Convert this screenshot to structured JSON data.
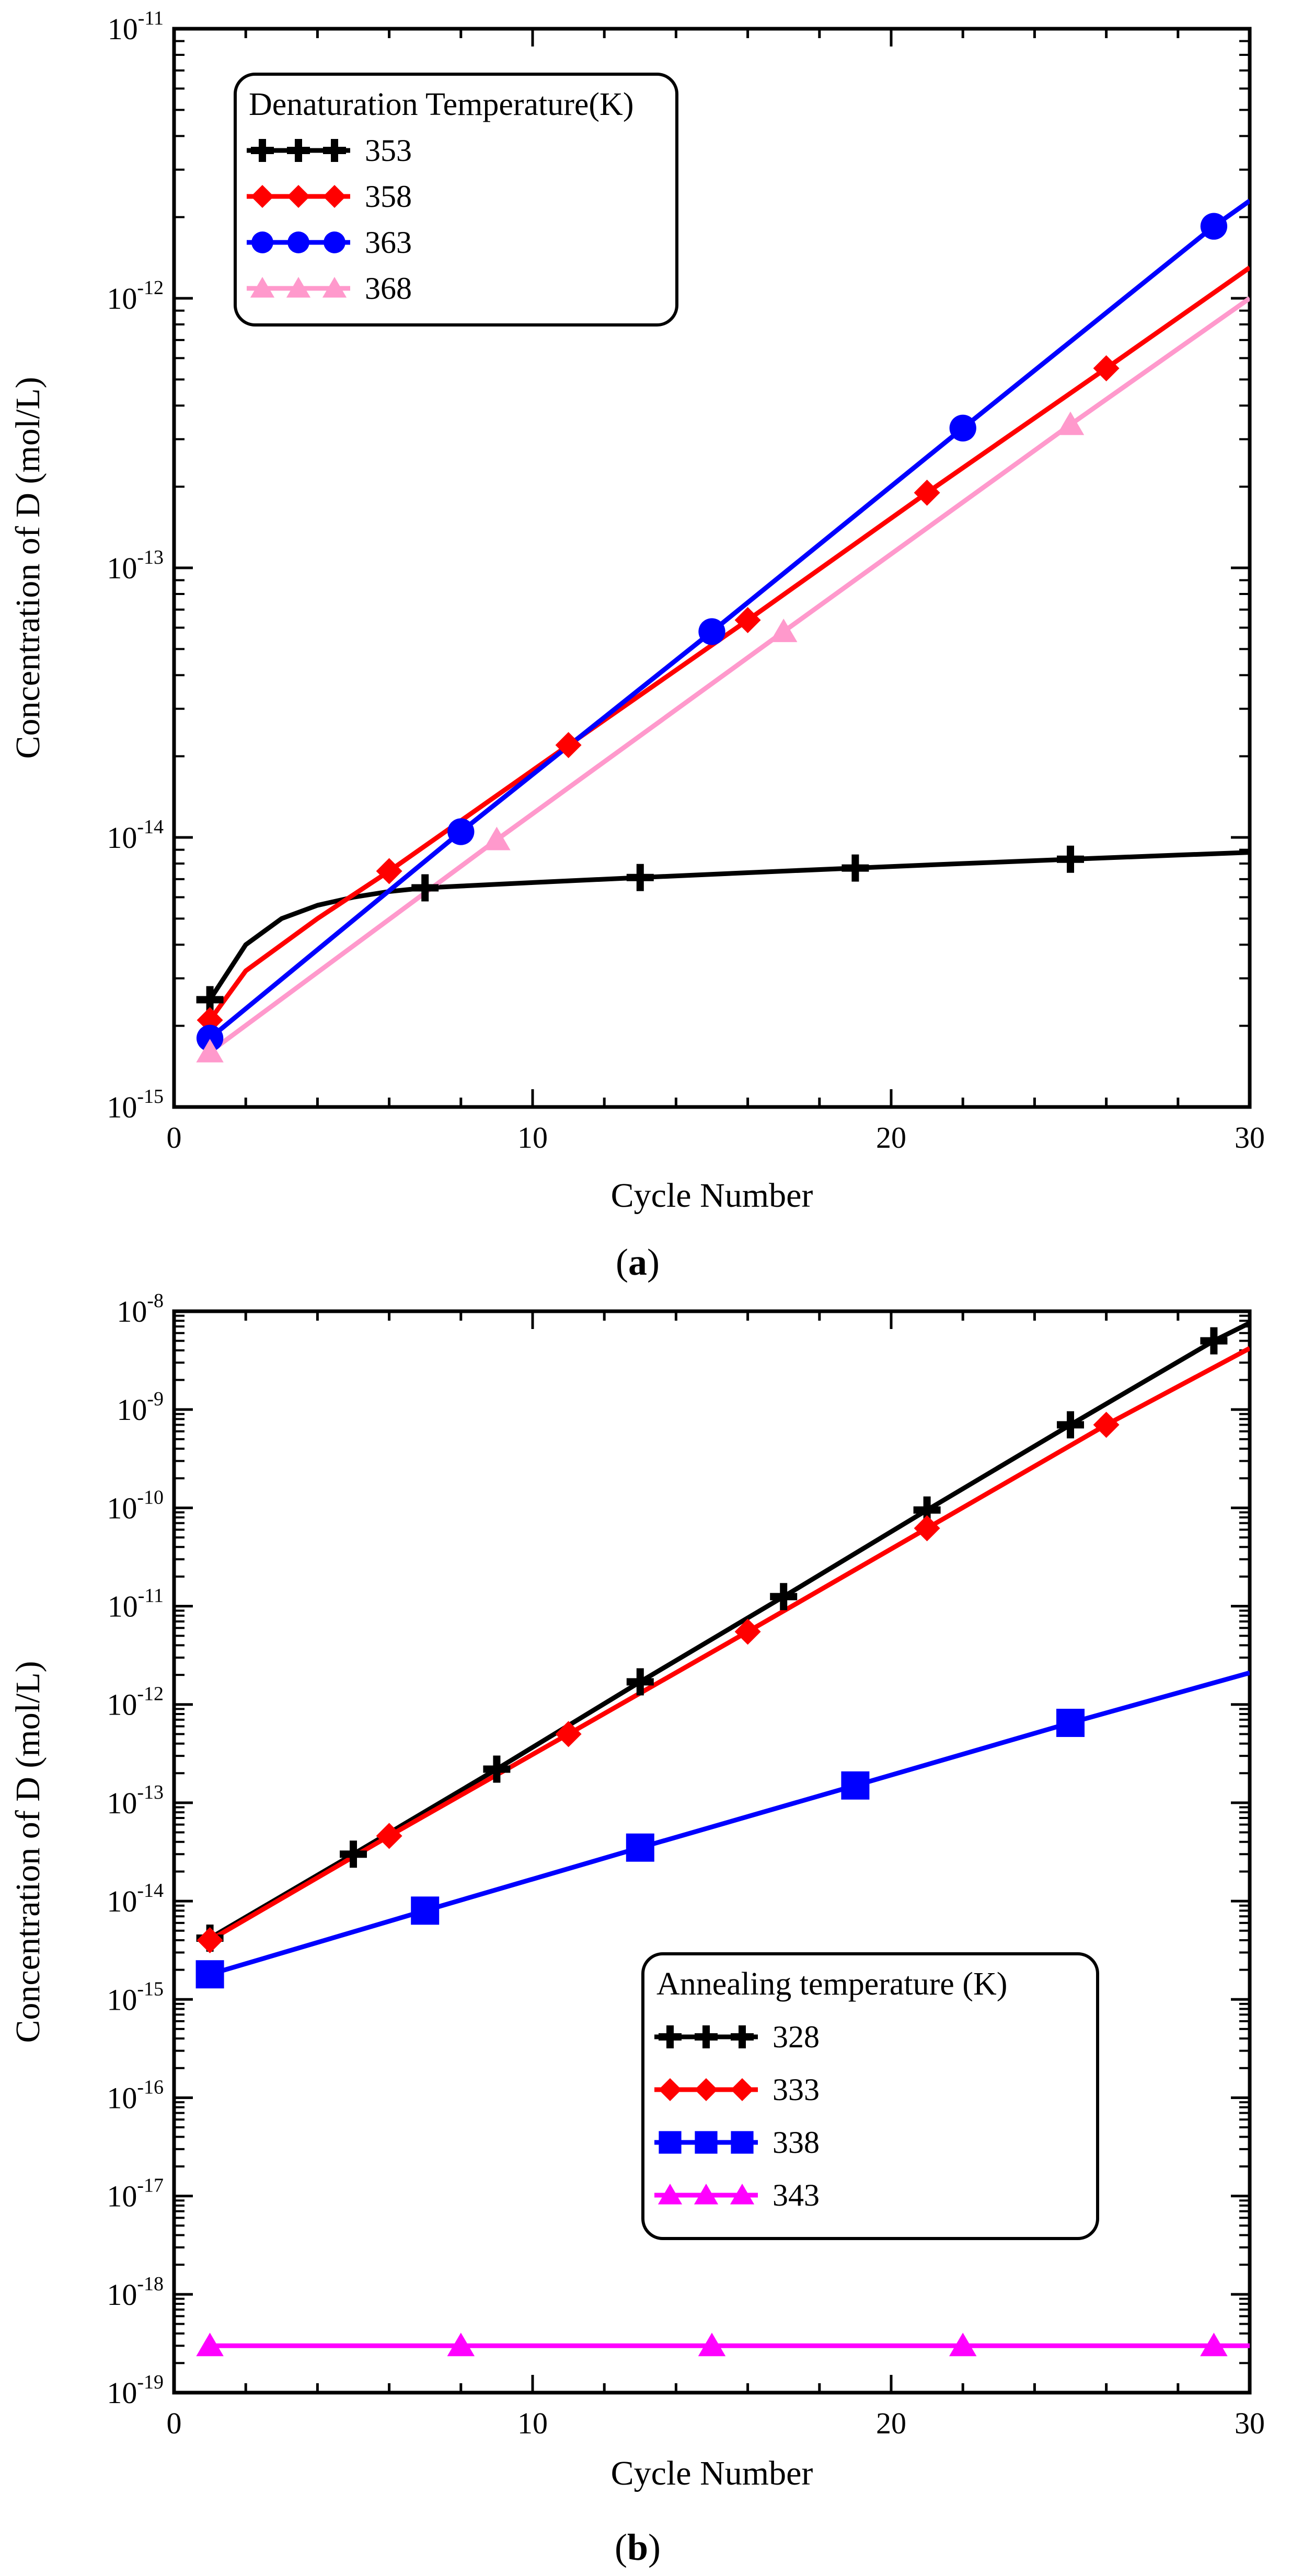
{
  "chart_data": [
    {
      "type": "line",
      "panel_label": "a",
      "xlabel": "Cycle Number",
      "ylabel": "Concentration of D (mol/L)",
      "xlim": [
        0,
        30
      ],
      "ylim": [
        1e-15,
        1e-11
      ],
      "yscale": "log",
      "x_ticks": [
        0,
        10,
        20,
        30
      ],
      "y_tick_exponents": [
        -15,
        -14,
        -13,
        -12,
        -11
      ],
      "y_tick_base": "10",
      "grid": false,
      "legend": {
        "title": "Denaturation Temperature(K)",
        "position": "top-left"
      },
      "series": [
        {
          "name": "353",
          "color": "#000000",
          "marker": "plus",
          "line_x": [
            1,
            2,
            3,
            4,
            5,
            6,
            7,
            8,
            10,
            13,
            16,
            19,
            22,
            25,
            28,
            30
          ],
          "line_y": [
            2.5e-15,
            4e-15,
            5e-15,
            5.6e-15,
            6e-15,
            6.3e-15,
            6.5e-15,
            6.6e-15,
            6.8e-15,
            7.1e-15,
            7.4e-15,
            7.7e-15,
            8e-15,
            8.3e-15,
            8.6e-15,
            8.8e-15
          ],
          "marker_x": [
            1,
            7,
            13,
            19,
            25
          ],
          "marker_y": [
            2.5e-15,
            6.5e-15,
            7.1e-15,
            7.7e-15,
            8.3e-15
          ]
        },
        {
          "name": "358",
          "color": "#ff0000",
          "marker": "diamond",
          "line_x": [
            1,
            2,
            3,
            4,
            6,
            11,
            16,
            21,
            26,
            30
          ],
          "line_y": [
            2.1e-15,
            3.2e-15,
            4e-15,
            5e-15,
            7.5e-15,
            2.2e-14,
            6.4e-14,
            1.9e-13,
            5.5e-13,
            1.3e-12
          ],
          "marker_x": [
            1,
            6,
            11,
            16,
            21,
            26
          ],
          "marker_y": [
            2.1e-15,
            7.5e-15,
            2.2e-14,
            6.4e-14,
            1.9e-13,
            5.5e-13
          ]
        },
        {
          "name": "363",
          "color": "#0000ff",
          "marker": "circle",
          "line_x": [
            1,
            8,
            15,
            22,
            29,
            30
          ],
          "line_y": [
            1.8e-15,
            1.05e-14,
            5.8e-14,
            3.3e-13,
            1.85e-12,
            2.3e-12
          ],
          "marker_x": [
            1,
            8,
            15,
            22,
            29
          ],
          "marker_y": [
            1.8e-15,
            1.05e-14,
            5.8e-14,
            3.3e-13,
            1.85e-12
          ]
        },
        {
          "name": "368",
          "color": "#ff99cc",
          "marker": "triangle",
          "line_x": [
            1,
            9,
            17,
            25,
            30
          ],
          "line_y": [
            1.6e-15,
            9.8e-15,
            5.8e-14,
            3.4e-13,
            1e-12
          ],
          "marker_x": [
            1,
            9,
            17,
            25
          ],
          "marker_y": [
            1.6e-15,
            9.8e-15,
            5.8e-14,
            3.4e-13
          ]
        }
      ]
    },
    {
      "type": "line",
      "panel_label": "b",
      "xlabel": "Cycle Number",
      "ylabel": "Concentration of D (mol/L)",
      "xlim": [
        0,
        30
      ],
      "ylim": [
        1e-19,
        1e-08
      ],
      "yscale": "log",
      "x_ticks": [
        0,
        10,
        20,
        30
      ],
      "y_tick_exponents": [
        -19,
        -18,
        -17,
        -16,
        -15,
        -14,
        -13,
        -12,
        -11,
        -10,
        -9,
        -8
      ],
      "y_tick_base": "10",
      "grid": false,
      "legend": {
        "title": "Annealing temperature (K)",
        "position": "bottom-right"
      },
      "series": [
        {
          "name": "328",
          "color": "#000000",
          "marker": "plus",
          "line_x": [
            1,
            5,
            9,
            13,
            17,
            21,
            25,
            29,
            30
          ],
          "line_y": [
            4.2e-15,
            3e-14,
            2.2e-13,
            1.7e-12,
            1.25e-11,
            9.5e-11,
            7e-10,
            5e-09,
            7.6e-09
          ],
          "marker_x": [
            1,
            5,
            9,
            13,
            17,
            21,
            25,
            29
          ],
          "marker_y": [
            4.2e-15,
            3e-14,
            2.2e-13,
            1.7e-12,
            1.25e-11,
            9.5e-11,
            7e-10,
            5e-09
          ]
        },
        {
          "name": "333",
          "color": "#ff0000",
          "marker": "diamond",
          "line_x": [
            1,
            6,
            11,
            16,
            21,
            26,
            30
          ],
          "line_y": [
            4e-15,
            4.6e-14,
            5e-13,
            5.5e-12,
            6.2e-11,
            7e-10,
            4.2e-09
          ],
          "marker_x": [
            1,
            6,
            11,
            16,
            21,
            26
          ],
          "marker_y": [
            4e-15,
            4.6e-14,
            5e-13,
            5.5e-12,
            6.2e-11,
            7e-10
          ]
        },
        {
          "name": "338",
          "color": "#0000ff",
          "marker": "square",
          "line_x": [
            1,
            7,
            13,
            19,
            25,
            30
          ],
          "line_y": [
            1.8e-15,
            8e-15,
            3.5e-14,
            1.5e-13,
            6.5e-13,
            2.1e-12
          ],
          "marker_x": [
            1,
            7,
            13,
            19,
            25
          ],
          "marker_y": [
            1.8e-15,
            8e-15,
            3.5e-14,
            1.5e-13,
            6.5e-13
          ]
        },
        {
          "name": "343",
          "color": "#ff00ff",
          "marker": "triangle",
          "line_x": [
            1,
            30
          ],
          "line_y": [
            3e-19,
            3e-19
          ],
          "marker_x": [
            1,
            8,
            15,
            22,
            29
          ],
          "marker_y": [
            3e-19,
            3e-19,
            3e-19,
            3e-19,
            3e-19
          ]
        }
      ]
    }
  ]
}
